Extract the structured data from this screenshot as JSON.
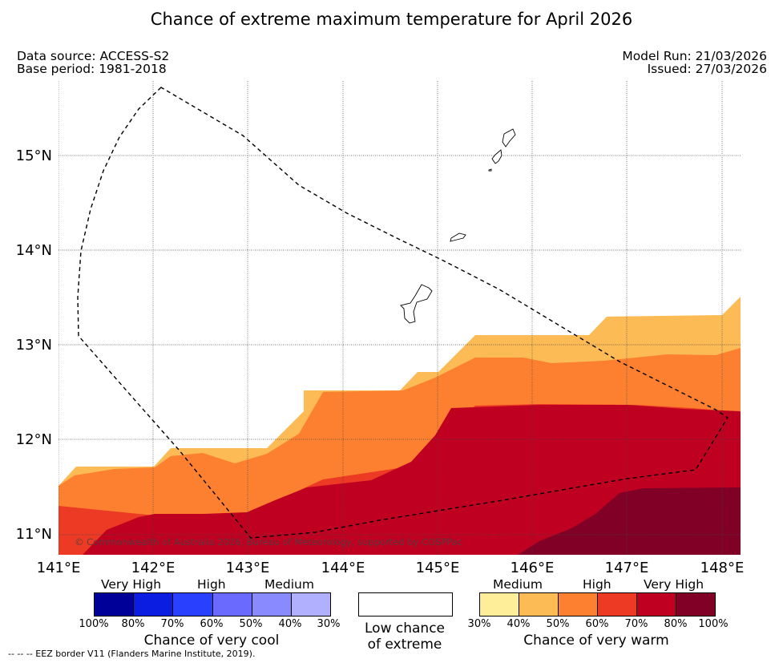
{
  "title": "Chance of extreme maximum temperature for April 2026",
  "meta": {
    "data_source": "Data source: ACCESS-S2",
    "base_period": "Base period: 1981-2018",
    "model_run": "Model Run: 21/03/2026",
    "issued": "Issued: 27/03/2026"
  },
  "axes": {
    "lat_labels": [
      "15°N",
      "14°N",
      "13°N",
      "12°N",
      "11°N"
    ],
    "lon_labels": [
      "141°E",
      "142°E",
      "143°E",
      "144°E",
      "145°E",
      "146°E",
      "147°E",
      "148°E"
    ]
  },
  "copyright": "© Commonwealth of Australia 2026, Bureau of Meteorology, supported by COSPPac",
  "legend": {
    "cool": {
      "headers": [
        "Very High",
        "High",
        "Medium"
      ],
      "colors": [
        "#000099",
        "#0a1de0",
        "#2a40ff",
        "#6a6aff",
        "#8a8aff",
        "#b0b0ff"
      ],
      "ticks": [
        "100%",
        "80%",
        "70%",
        "60%",
        "50%",
        "40%",
        "30%"
      ],
      "caption": "Chance of very cool"
    },
    "neutral": {
      "caption_line1": "Low chance",
      "caption_line2": "of extreme"
    },
    "warm": {
      "headers": [
        "Medium",
        "High",
        "Very High"
      ],
      "colors": [
        "#ffee99",
        "#fdbb55",
        "#fd8030",
        "#ec3a24",
        "#c00020",
        "#800026"
      ],
      "ticks": [
        "30%",
        "40%",
        "50%",
        "60%",
        "70%",
        "80%",
        "100%"
      ],
      "caption": "Chance of very warm"
    }
  },
  "footnote": "--  --  -- EEZ border V11 (Flanders Marine Institute, 2019).",
  "map_colors": {
    "c40": "#fdbb55",
    "c50": "#fd8030",
    "c60": "#ec3a24",
    "c70": "#c00020",
    "c80": "#800026"
  }
}
